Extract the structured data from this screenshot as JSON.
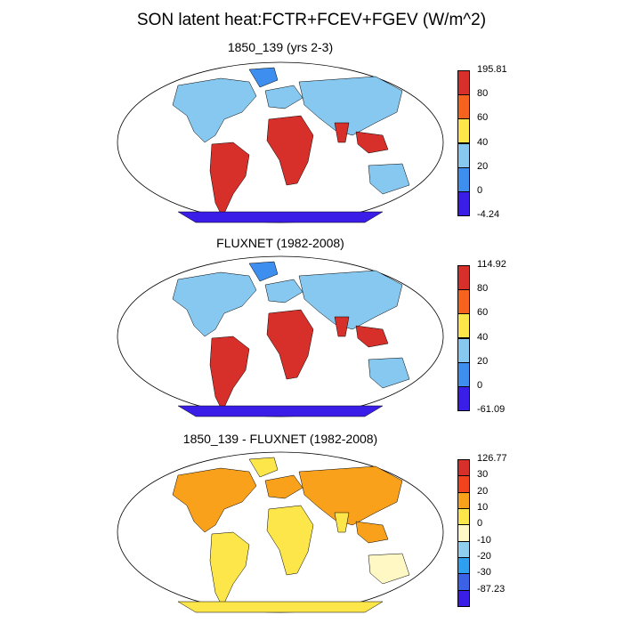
{
  "title": "SON latent heat:FCTR+FCEV+FGEV (W/m^2)",
  "panels": [
    {
      "title": "1850_139 (yrs 2-3)",
      "colorbar": {
        "labels": [
          "195.81",
          "80",
          "60",
          "40",
          "20",
          "0",
          "-4.24"
        ],
        "colors": [
          "#d7302a",
          "#f5631f",
          "#fde64a",
          "#86c8f0",
          "#3e8ef0",
          "#3b1de8"
        ]
      }
    },
    {
      "title": "FLUXNET (1982-2008)",
      "colorbar": {
        "labels": [
          "114.92",
          "80",
          "60",
          "40",
          "20",
          "0",
          "-61.09"
        ],
        "colors": [
          "#d7302a",
          "#f5631f",
          "#fde64a",
          "#86c8f0",
          "#3e8ef0",
          "#3b1de8"
        ]
      }
    },
    {
      "title": "1850_139 - FLUXNET (1982-2008)",
      "colorbar": {
        "labels": [
          "126.77",
          "30",
          "20",
          "10",
          "0",
          "-10",
          "-20",
          "-30",
          "-87.23"
        ],
        "colors": [
          "#d7302a",
          "#f0431e",
          "#f9a11b",
          "#fde64a",
          "#fff8c4",
          "#8fd0f0",
          "#2f9ff0",
          "#3b62e6",
          "#3b1de8"
        ]
      }
    }
  ]
}
